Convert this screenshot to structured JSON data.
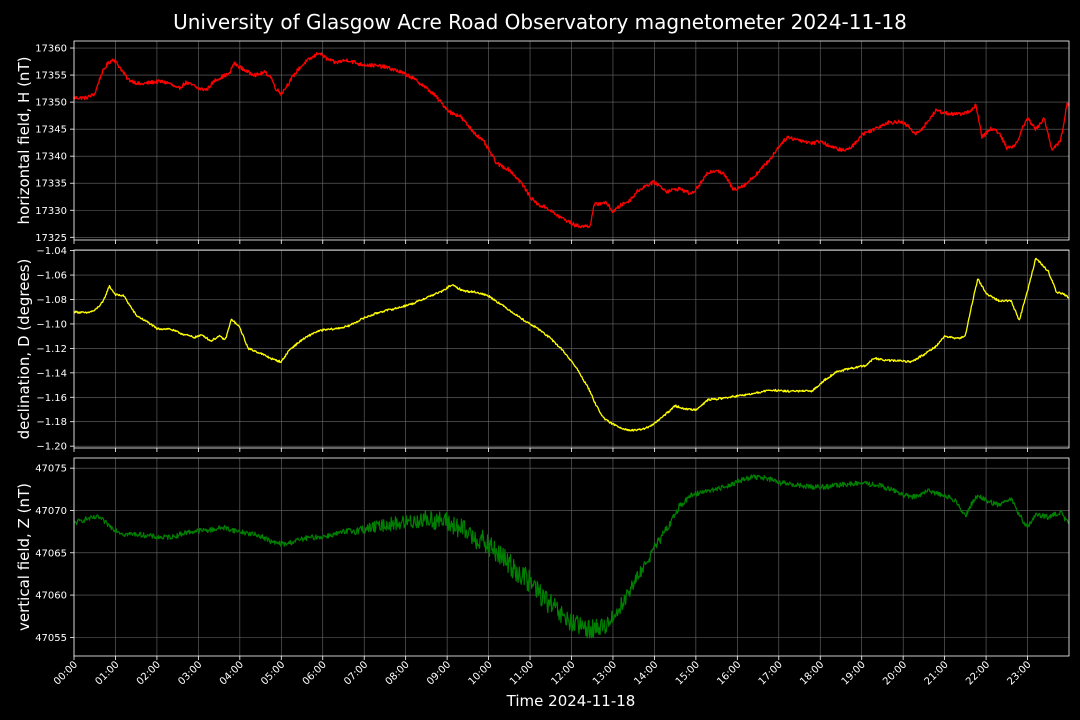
{
  "chart_data": {
    "type": "line",
    "title": "University of Glasgow Acre Road Observatory magnetometer 2024-11-18",
    "xlabel": "Time 2024-11-18",
    "x_ticks": [
      "00:00",
      "01:00",
      "02:00",
      "03:00",
      "04:00",
      "05:00",
      "06:00",
      "07:00",
      "08:00",
      "09:00",
      "10:00",
      "11:00",
      "12:00",
      "13:00",
      "14:00",
      "15:00",
      "16:00",
      "17:00",
      "18:00",
      "19:00",
      "20:00",
      "21:00",
      "22:00",
      "23:00"
    ],
    "xlim_hours": [
      0,
      24
    ],
    "grid": true,
    "background": "#000000",
    "grid_color": "#6b6b6b",
    "panels": [
      {
        "name": "H",
        "ylabel": "horizontal field, H (nT)",
        "color": "#ff0000",
        "noise": 0.35,
        "ylim": [
          17324.5,
          17361.3
        ],
        "yticks": [
          17325,
          17330,
          17335,
          17340,
          17345,
          17350,
          17355,
          17360
        ],
        "ytick_labels": [
          "17325",
          "17330",
          "17335",
          "17340",
          "17345",
          "17350",
          "17355",
          "17360"
        ],
        "series": [
          {
            "name": "",
            "x": [
              0,
              0.3,
              0.5,
              0.65,
              0.8,
              0.95,
              1.1,
              1.3,
              1.6,
              1.9,
              2.1,
              2.3,
              2.5,
              2.7,
              2.9,
              3.0,
              3.2,
              3.4,
              3.6,
              3.75,
              3.85,
              4.0,
              4.2,
              4.4,
              4.6,
              4.75,
              4.85,
              5.0,
              5.2,
              5.4,
              5.6,
              5.8,
              5.9,
              6.1,
              6.3,
              6.6,
              6.9,
              7.2,
              7.5,
              7.8,
              8.1,
              8.4,
              8.7,
              8.9,
              9.1,
              9.3,
              9.6,
              9.9,
              10.2,
              10.5,
              10.8,
              11.0,
              11.2,
              11.4,
              11.6,
              11.9,
              12.1,
              12.3,
              12.45,
              12.55,
              12.8,
              12.9,
              13.0,
              13.2,
              13.4,
              13.6,
              13.8,
              14.0,
              14.3,
              14.6,
              14.9,
              15.1,
              15.3,
              15.5,
              15.7,
              15.9,
              16.2,
              16.5,
              16.8,
              17.0,
              17.2,
              17.5,
              17.8,
              18.0,
              18.3,
              18.6,
              18.8,
              19.0,
              19.3,
              19.6,
              19.9,
              20.1,
              20.3,
              20.5,
              20.8,
              21.0,
              21.3,
              21.6,
              21.75,
              21.9,
              22.1,
              22.3,
              22.5,
              22.7,
              22.9,
              23.0,
              23.2,
              23.4,
              23.6,
              23.8,
              23.95,
              24.0
            ],
            "values": [
              17350.8,
              17350.8,
              17351.5,
              17355.0,
              17357.0,
              17358.0,
              17356.5,
              17354.2,
              17353.3,
              17353.7,
              17353.8,
              17353.5,
              17352.4,
              17353.6,
              17353.0,
              17352.5,
              17352.3,
              17354.0,
              17354.8,
              17355.2,
              17357.2,
              17356.5,
              17355.5,
              17355.0,
              17355.5,
              17354.7,
              17352.7,
              17351.5,
              17353.8,
              17356.0,
              17357.5,
              17358.5,
              17359.2,
              17358.0,
              17357.3,
              17357.8,
              17357.0,
              17356.8,
              17356.5,
              17355.8,
              17354.8,
              17353.2,
              17351.3,
              17349.5,
              17348.0,
              17347.5,
              17344.8,
              17342.5,
              17338.6,
              17337.5,
              17335.0,
              17332.5,
              17331.0,
              17330.5,
              17329.3,
              17328.0,
              17327.2,
              17327.0,
              17327.2,
              17331.0,
              17331.5,
              17330.8,
              17329.7,
              17331.0,
              17331.8,
              17333.6,
              17334.6,
              17335.2,
              17333.5,
              17334.0,
              17333.0,
              17334.8,
              17337.0,
              17337.5,
              17336.5,
              17333.8,
              17334.8,
              17337.0,
              17339.5,
              17341.8,
              17343.5,
              17343.0,
              17342.4,
              17342.8,
              17341.6,
              17341.0,
              17342.0,
              17344.0,
              17345.0,
              17346.2,
              17346.4,
              17345.7,
              17344.0,
              17345.5,
              17348.5,
              17348.0,
              17347.7,
              17348.2,
              17349.5,
              17343.5,
              17345.0,
              17344.5,
              17341.5,
              17342.0,
              17345.5,
              17347.0,
              17345.0,
              17347.0,
              17341.0,
              17343.0,
              17349.5,
              17349.5
            ]
          }
        ]
      },
      {
        "name": "D",
        "ylabel": "declination, D (degrees)",
        "color": "#ffff00",
        "noise": 0.0008,
        "ylim": [
          -1.2015,
          -1.0395
        ],
        "yticks": [
          -1.2,
          -1.18,
          -1.16,
          -1.14,
          -1.12,
          -1.1,
          -1.08,
          -1.06,
          -1.04
        ],
        "ytick_labels": [
          "−1.20",
          "−1.18",
          "−1.16",
          "−1.14",
          "−1.12",
          "−1.10",
          "−1.08",
          "−1.06",
          "−1.04"
        ],
        "series": [
          {
            "name": "",
            "x": [
              0,
              0.3,
              0.5,
              0.7,
              0.85,
              1.0,
              1.2,
              1.5,
              1.8,
              2.0,
              2.3,
              2.6,
              2.9,
              3.1,
              3.3,
              3.5,
              3.65,
              3.8,
              4.0,
              4.2,
              4.5,
              4.8,
              5.0,
              5.2,
              5.5,
              5.8,
              6.0,
              6.3,
              6.6,
              7.0,
              7.4,
              7.8,
              8.2,
              8.6,
              8.9,
              9.1,
              9.4,
              9.7,
              10.0,
              10.3,
              10.6,
              10.9,
              11.2,
              11.5,
              11.8,
              12.1,
              12.4,
              12.6,
              12.8,
              13.0,
              13.2,
              13.4,
              13.6,
              13.9,
              14.2,
              14.5,
              14.8,
              15.0,
              15.3,
              15.6,
              16.0,
              16.4,
              16.8,
              17.1,
              17.5,
              17.8,
              18.1,
              18.4,
              18.8,
              19.1,
              19.3,
              19.6,
              19.9,
              20.2,
              20.5,
              20.8,
              21.0,
              21.3,
              21.5,
              21.65,
              21.8,
              22.0,
              22.3,
              22.6,
              22.8,
              23.0,
              23.2,
              23.5,
              23.7,
              23.9,
              24.0
            ],
            "values": [
              -1.09,
              -1.091,
              -1.089,
              -1.082,
              -1.069,
              -1.076,
              -1.077,
              -1.093,
              -1.099,
              -1.104,
              -1.104,
              -1.108,
              -1.111,
              -1.109,
              -1.114,
              -1.11,
              -1.113,
              -1.096,
              -1.103,
              -1.12,
              -1.124,
              -1.129,
              -1.131,
              -1.121,
              -1.113,
              -1.107,
              -1.105,
              -1.104,
              -1.102,
              -1.095,
              -1.09,
              -1.087,
              -1.083,
              -1.077,
              -1.073,
              -1.068,
              -1.073,
              -1.074,
              -1.077,
              -1.084,
              -1.091,
              -1.098,
              -1.104,
              -1.112,
              -1.122,
              -1.135,
              -1.152,
              -1.167,
              -1.178,
              -1.182,
              -1.185,
              -1.187,
              -1.187,
              -1.184,
              -1.176,
              -1.167,
              -1.17,
              -1.17,
              -1.162,
              -1.161,
              -1.159,
              -1.157,
              -1.154,
              -1.155,
              -1.155,
              -1.155,
              -1.146,
              -1.139,
              -1.136,
              -1.134,
              -1.128,
              -1.13,
              -1.13,
              -1.131,
              -1.125,
              -1.118,
              -1.11,
              -1.112,
              -1.11,
              -1.085,
              -1.063,
              -1.075,
              -1.081,
              -1.081,
              -1.097,
              -1.073,
              -1.046,
              -1.057,
              -1.074,
              -1.076,
              -1.079
            ]
          }
        ]
      },
      {
        "name": "Z",
        "ylabel": "vertical field, Z (nT)",
        "color": "#008000",
        "noise": 0.3,
        "ylim": [
          47052.8,
          47076.2
        ],
        "yticks": [
          47055,
          47060,
          47065,
          47070,
          47075
        ],
        "ytick_labels": [
          "47055",
          "47060",
          "47065",
          "47070",
          "47075"
        ],
        "series": [
          {
            "name": "",
            "x": [
              0,
              0.3,
              0.6,
              0.9,
              1.2,
              1.5,
              1.8,
              2.1,
              2.4,
              2.7,
              3.0,
              3.3,
              3.6,
              3.9,
              4.2,
              4.5,
              4.8,
              5.1,
              5.4,
              5.7,
              6.0,
              6.3,
              6.6,
              7.0,
              7.5,
              8.0,
              8.5,
              9.0,
              9.4,
              9.8,
              10.2,
              10.6,
              11.0,
              11.4,
              11.8,
              12.2,
              12.5,
              12.8,
              13.1,
              13.4,
              13.7,
              14.0,
              14.3,
              14.6,
              14.9,
              15.2,
              15.5,
              15.8,
              16.1,
              16.4,
              16.7,
              17.0,
              17.4,
              17.8,
              18.2,
              18.6,
              19.0,
              19.4,
              19.8,
              20.2,
              20.6,
              21.0,
              21.3,
              21.5,
              21.65,
              21.8,
              22.0,
              22.3,
              22.6,
              22.8,
              23.0,
              23.2,
              23.5,
              23.8,
              24.0
            ],
            "values": [
              47068.5,
              47069.0,
              47069.2,
              47068.0,
              47067.2,
              47067.2,
              47067.0,
              47066.8,
              47066.9,
              47067.4,
              47067.6,
              47067.7,
              47068.0,
              47067.6,
              47067.3,
              47067.0,
              47066.2,
              47066.0,
              47066.5,
              47066.8,
              47066.9,
              47067.2,
              47067.5,
              47067.8,
              47068.3,
              47068.6,
              47069.0,
              47068.6,
              47067.6,
              47066.5,
              47065.0,
              47063.2,
              47061.5,
              47059.3,
              47057.3,
              47056.2,
              47056.0,
              47056.3,
              47058.0,
              47060.5,
              47063.0,
              47065.5,
              47067.8,
              47070.5,
              47071.8,
              47072.3,
              47072.5,
              47073.0,
              47073.6,
              47074.0,
              47073.8,
              47073.3,
              47073.0,
              47072.8,
              47072.8,
              47073.1,
              47073.2,
              47073.0,
              47072.3,
              47071.5,
              47072.3,
              47071.8,
              47071.0,
              47069.3,
              47070.8,
              47071.8,
              47071.2,
              47070.6,
              47071.5,
              47069.5,
              47068.0,
              47069.5,
              47069.2,
              47069.8,
              47068.3
            ]
          }
        ]
      }
    ]
  }
}
